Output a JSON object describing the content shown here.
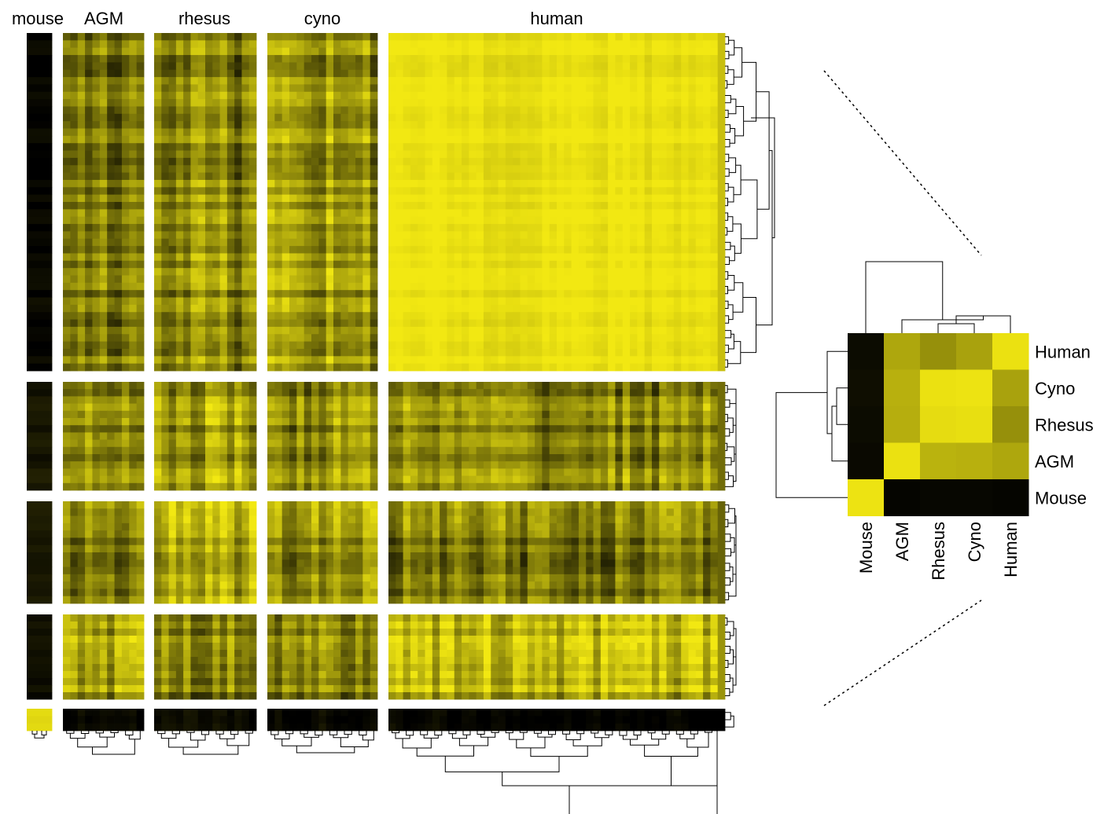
{
  "chart_data": [
    {
      "type": "heatmap",
      "title": "",
      "column_labels": [
        "mouse",
        "AGM",
        "rhesus",
        "cyno",
        "human"
      ],
      "row_blocks": 5,
      "colors": {
        "low": "#000000",
        "high": "#f2e812"
      },
      "block_summary_level": [
        [
          0.02,
          0.55,
          0.55,
          0.6,
          0.97
        ],
        [
          0.05,
          0.55,
          0.65,
          0.6,
          0.55
        ],
        [
          0.05,
          0.5,
          0.7,
          0.6,
          0.5
        ],
        [
          0.02,
          0.65,
          0.55,
          0.55,
          0.75
        ],
        [
          0.98,
          0.03,
          0.05,
          0.05,
          0.02
        ]
      ],
      "dendrograms": {
        "rows": true,
        "columns": true
      }
    },
    {
      "type": "heatmap",
      "title": "",
      "x_labels": [
        "Mouse",
        "AGM",
        "Rhesus",
        "Cyno",
        "Human"
      ],
      "y_labels": [
        "Human",
        "Cyno",
        "Rhesus",
        "AGM",
        "Mouse"
      ],
      "values": [
        [
          0.05,
          0.72,
          0.62,
          0.7,
          0.97
        ],
        [
          0.06,
          0.76,
          0.97,
          0.98,
          0.7
        ],
        [
          0.05,
          0.75,
          0.95,
          0.96,
          0.62
        ],
        [
          0.04,
          0.97,
          0.77,
          0.76,
          0.72
        ],
        [
          0.98,
          0.02,
          0.03,
          0.03,
          0.02
        ]
      ],
      "colors": {
        "low": "#000000",
        "high": "#f2e812"
      },
      "dendrograms": {
        "rows": true,
        "columns": true
      }
    }
  ]
}
